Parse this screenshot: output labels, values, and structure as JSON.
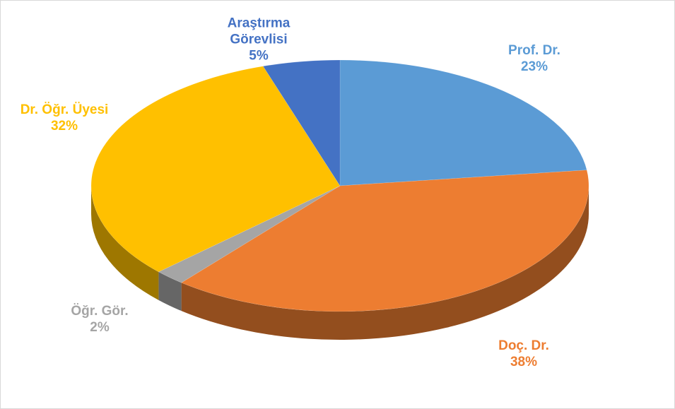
{
  "chart_data": {
    "type": "pie",
    "categories": [
      "Prof. Dr.",
      "Doç. Dr.",
      "Öğr. Gör.",
      "Dr. Öğr. Üyesi",
      "Araştırma Görevlisi"
    ],
    "values": [
      23,
      38,
      2,
      32,
      5
    ],
    "value_labels": [
      "23%",
      "38%",
      "2%",
      "32%",
      "5%"
    ],
    "colors": [
      "#5b9bd5",
      "#ed7d31",
      "#a5a5a5",
      "#ffc000",
      "#4472c4"
    ]
  }
}
